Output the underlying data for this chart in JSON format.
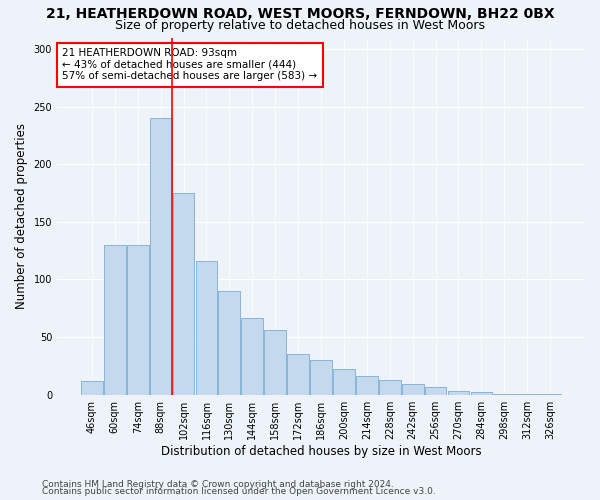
{
  "title1": "21, HEATHERDOWN ROAD, WEST MOORS, FERNDOWN, BH22 0BX",
  "title2": "Size of property relative to detached houses in West Moors",
  "xlabel": "Distribution of detached houses by size in West Moors",
  "ylabel": "Number of detached properties",
  "bar_labels": [
    "46sqm",
    "60sqm",
    "74sqm",
    "88sqm",
    "102sqm",
    "116sqm",
    "130sqm",
    "144sqm",
    "158sqm",
    "172sqm",
    "186sqm",
    "200sqm",
    "214sqm",
    "228sqm",
    "242sqm",
    "256sqm",
    "270sqm",
    "284sqm",
    "298sqm",
    "312sqm",
    "326sqm"
  ],
  "bar_values": [
    12,
    130,
    130,
    240,
    175,
    116,
    90,
    67,
    56,
    35,
    30,
    22,
    16,
    13,
    9,
    7,
    3,
    2,
    1,
    1,
    1
  ],
  "bar_color": "#c5d9ee",
  "bar_edge_color": "#7aaed4",
  "vline_x": 3.5,
  "vline_color": "red",
  "annotation_line1": "21 HEATHERDOWN ROAD: 93sqm",
  "annotation_line2": "← 43% of detached houses are smaller (444)",
  "annotation_line3": "57% of semi-detached houses are larger (583) →",
  "annotation_box_color": "white",
  "annotation_box_edge_color": "red",
  "ylim": [
    0,
    310
  ],
  "yticks": [
    0,
    50,
    100,
    150,
    200,
    250,
    300
  ],
  "footer1": "Contains HM Land Registry data © Crown copyright and database right 2024.",
  "footer2": "Contains public sector information licensed under the Open Government Licence v3.0.",
  "background_color": "#edf3f9",
  "plot_bg_color": "#edf3f9",
  "title1_fontsize": 10,
  "title2_fontsize": 9,
  "xlabel_fontsize": 8.5,
  "ylabel_fontsize": 8.5,
  "tick_fontsize": 7,
  "annotation_fontsize": 7.5,
  "footer_fontsize": 6.5
}
